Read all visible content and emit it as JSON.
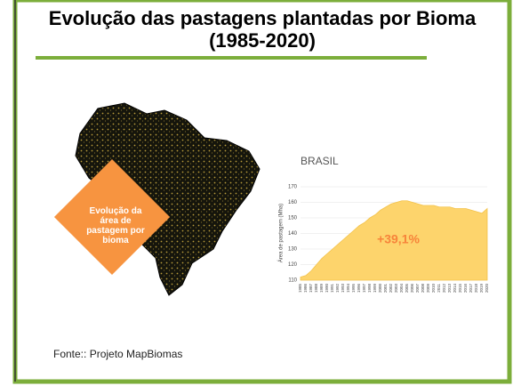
{
  "title": "Evolução das pastagens plantadas por Bioma (1985-2020)",
  "badge": "Evolução da área de pastagem por bioma",
  "source": "Fonte:: Projeto MapBiomas",
  "chart_data": {
    "type": "area",
    "title": "BRASIL",
    "ylabel": "Área de pastagem (Mha)",
    "annotation": "+39,1%",
    "color": "#fdd46c",
    "categories": [
      "1985",
      "1986",
      "1987",
      "1988",
      "1989",
      "1990",
      "1991",
      "1992",
      "1993",
      "1994",
      "1995",
      "1996",
      "1997",
      "1998",
      "1999",
      "2000",
      "2001",
      "2002",
      "2003",
      "2004",
      "2005",
      "2006",
      "2007",
      "2008",
      "2009",
      "2010",
      "2011",
      "2012",
      "2013",
      "2014",
      "2015",
      "2016",
      "2017",
      "2018",
      "2019",
      "2020"
    ],
    "values": [
      112,
      113,
      116,
      120,
      124,
      127,
      130,
      133,
      136,
      139,
      142,
      145,
      147,
      150,
      152,
      155,
      157,
      159,
      160,
      161,
      161,
      160,
      159,
      158,
      158,
      158,
      157,
      157,
      157,
      156,
      156,
      156,
      155,
      154,
      153,
      156
    ],
    "ylim": [
      110,
      170
    ],
    "yticks": [
      110,
      120,
      130,
      140,
      150,
      160,
      170
    ],
    "grid": true
  }
}
